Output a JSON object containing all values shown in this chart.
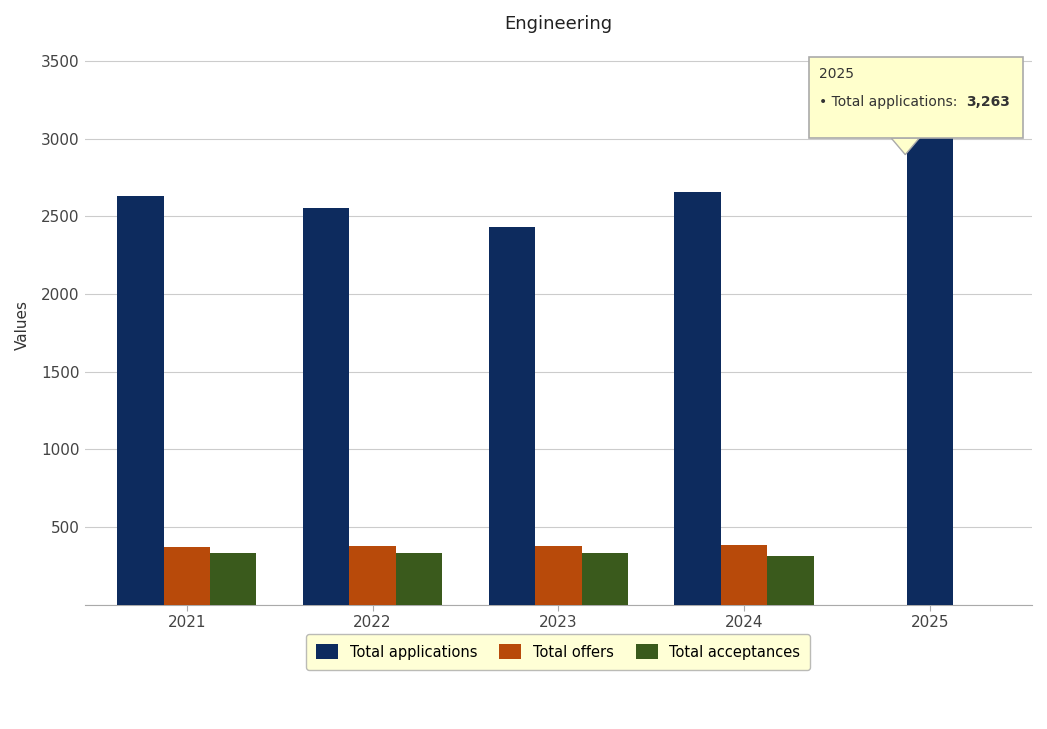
{
  "title": "Engineering",
  "ylabel": "Values",
  "years": [
    2021,
    2022,
    2023,
    2024,
    2025
  ],
  "total_applications": [
    2630,
    2555,
    2430,
    2660,
    3263
  ],
  "total_offers": [
    370,
    378,
    378,
    383,
    null
  ],
  "total_acceptances": [
    330,
    330,
    330,
    310,
    null
  ],
  "bar_color_applications": "#0d2b5e",
  "bar_color_offers": "#b84a0a",
  "bar_color_acceptances": "#3a5a1c",
  "background_color": "#ffffff",
  "grid_color": "#cccccc",
  "ylim": [
    0,
    3600
  ],
  "yticks": [
    0,
    500,
    1000,
    1500,
    2000,
    2500,
    3000,
    3500
  ],
  "tooltip_year": "2025",
  "tooltip_label": "Total applications",
  "tooltip_value": "3,263",
  "tooltip_bg": "#ffffcc",
  "tooltip_border": "#aaaaaa",
  "tooltip_dot_color": "#003399",
  "legend_bg": "#ffffcc",
  "bar_width": 0.25
}
